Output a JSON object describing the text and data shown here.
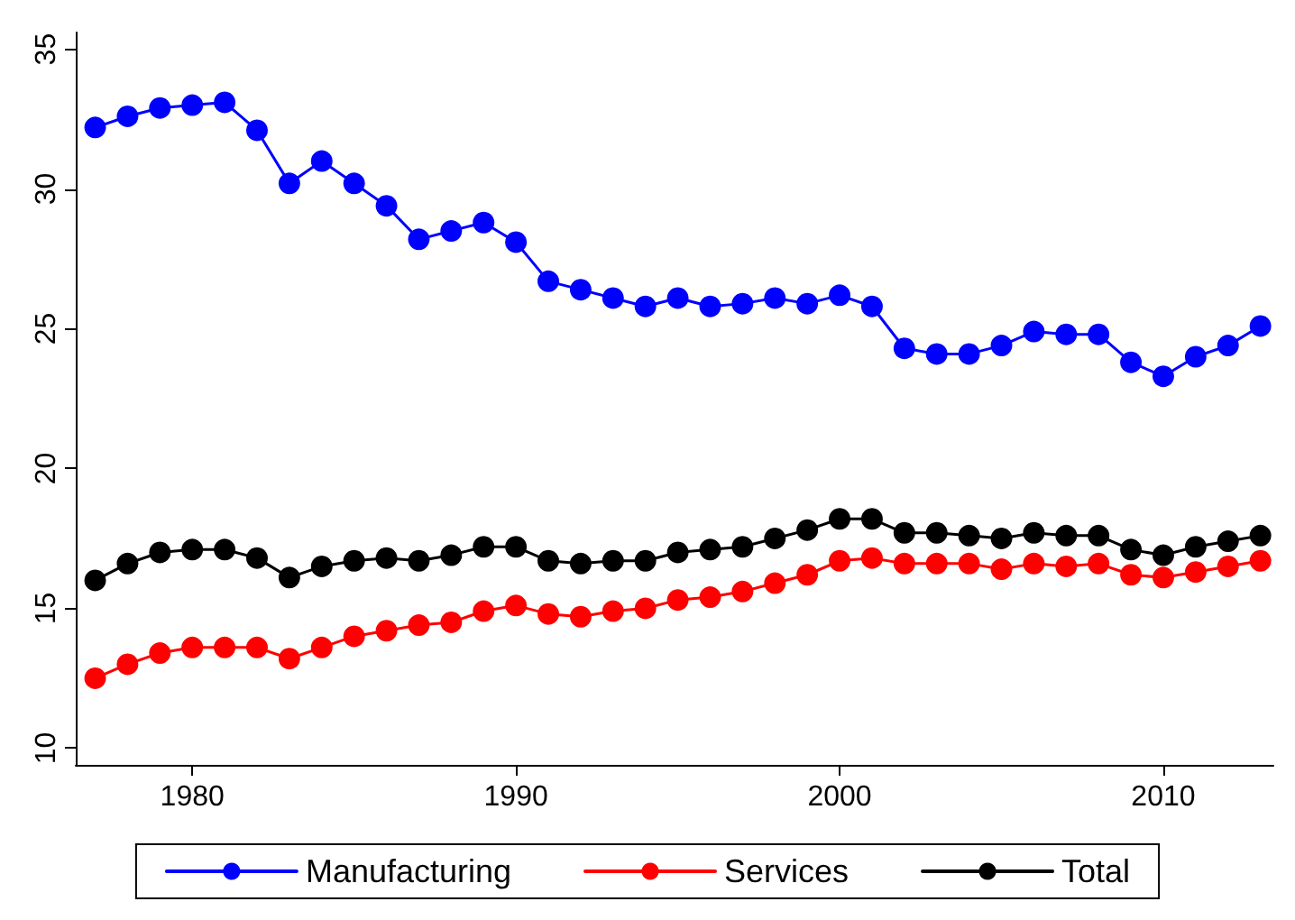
{
  "chart_data": {
    "type": "line",
    "x": [
      1977,
      1978,
      1979,
      1980,
      1981,
      1982,
      1983,
      1984,
      1985,
      1986,
      1987,
      1988,
      1989,
      1990,
      1991,
      1992,
      1993,
      1994,
      1995,
      1996,
      1997,
      1998,
      1999,
      2000,
      2001,
      2002,
      2003,
      2004,
      2005,
      2006,
      2007,
      2008,
      2009,
      2010,
      2011,
      2012,
      2013
    ],
    "series": [
      {
        "name": "Manufacturing",
        "color": "#0000ff",
        "values": [
          32.2,
          32.6,
          32.9,
          33.0,
          33.1,
          32.1,
          30.2,
          31.0,
          30.2,
          29.4,
          28.2,
          28.5,
          28.8,
          28.1,
          26.7,
          26.4,
          26.1,
          25.8,
          26.1,
          25.8,
          25.9,
          26.1,
          25.9,
          26.2,
          25.8,
          24.3,
          24.1,
          24.1,
          24.4,
          24.9,
          24.8,
          24.8,
          23.8,
          23.3,
          24.0,
          24.4,
          25.1
        ]
      },
      {
        "name": "Services",
        "color": "#ff0000",
        "values": [
          12.5,
          13.0,
          13.4,
          13.6,
          13.6,
          13.6,
          13.2,
          13.6,
          14.0,
          14.2,
          14.4,
          14.5,
          14.9,
          15.1,
          14.8,
          14.7,
          14.9,
          15.0,
          15.3,
          15.4,
          15.6,
          15.9,
          16.2,
          16.7,
          16.8,
          16.6,
          16.6,
          16.6,
          16.4,
          16.6,
          16.5,
          16.6,
          16.2,
          16.1,
          16.3,
          16.5,
          16.7
        ]
      },
      {
        "name": "Total",
        "color": "#000000",
        "values": [
          16.0,
          16.6,
          17.0,
          17.1,
          17.1,
          16.8,
          16.1,
          16.5,
          16.7,
          16.8,
          16.7,
          16.9,
          17.2,
          17.2,
          16.7,
          16.6,
          16.7,
          16.7,
          17.0,
          17.1,
          17.2,
          17.5,
          17.8,
          18.2,
          18.2,
          17.7,
          17.7,
          17.6,
          17.5,
          17.7,
          17.6,
          17.6,
          17.1,
          16.9,
          17.2,
          17.4,
          17.6
        ]
      }
    ],
    "xlim": [
      1976.4,
      2013.4
    ],
    "xticks": [
      1980,
      1990,
      2000,
      2010
    ],
    "ylim": [
      9.4,
      35.6
    ],
    "yticks": [
      10,
      15,
      20,
      25,
      30,
      35
    ],
    "grid": false,
    "legend": "bottom",
    "marker": "circle",
    "line_style": "solid"
  }
}
